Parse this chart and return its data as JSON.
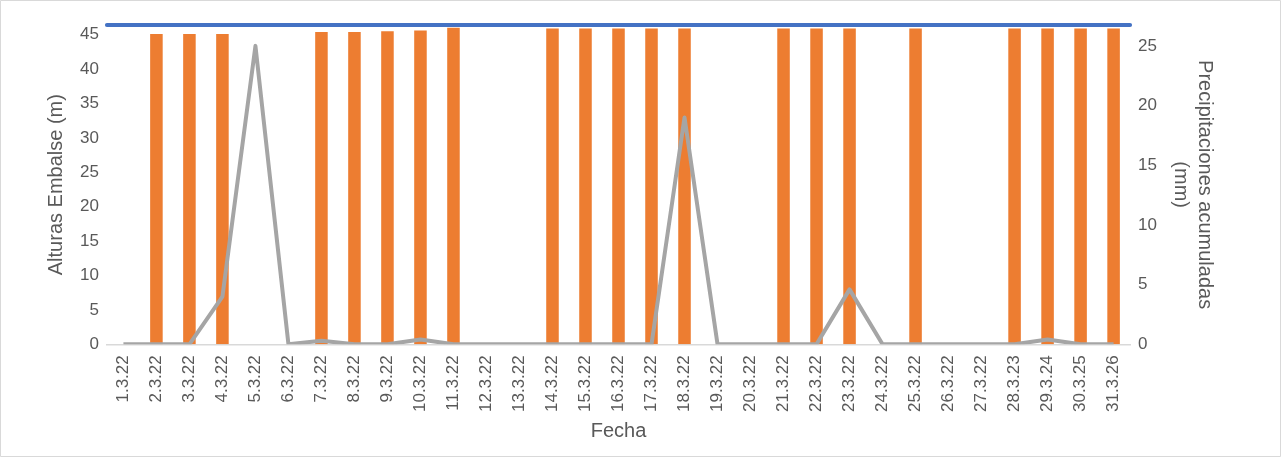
{
  "chart_data": {
    "type": "bar",
    "xlabel": "Fecha",
    "ylabel": "Alturas Embalse (m)",
    "y2label": "Precipitaciones acumuladas (mm)",
    "categories": [
      "1.3.22",
      "2.3.22",
      "3.3.22",
      "4.3.22",
      "5.3.22",
      "6.3.22",
      "7.3.22",
      "8.3.22",
      "9.3.22",
      "10.3.22",
      "11.3.22",
      "12.3.22",
      "13.3.22",
      "14.3.22",
      "15.3.22",
      "16.3.22",
      "17.3.22",
      "18.3.22",
      "19.3.22",
      "20.3.22",
      "21.3.22",
      "22.3.22",
      "23.3.22",
      "24.3.22",
      "25.3.22",
      "26.3.22",
      "27.3.22",
      "28.3.23",
      "29.3.24",
      "30.3.25",
      "31.3.26"
    ],
    "series": [
      {
        "color": "#ed7d31",
        "values": [
          null,
          45.1,
          45.1,
          45.1,
          null,
          null,
          45.4,
          45.4,
          45.5,
          45.6,
          46.0,
          null,
          null,
          45.9,
          45.9,
          45.9,
          45.9,
          45.9,
          null,
          null,
          45.9,
          45.9,
          45.9,
          null,
          45.9,
          null,
          null,
          45.9,
          45.9,
          45.9,
          45.9
        ]
      },
      {
        "type": "line",
        "axis": "y2",
        "color": "#a5a5a5",
        "values": [
          0,
          0,
          0,
          4.0,
          25,
          0,
          0.3,
          0,
          0,
          0.4,
          0,
          0,
          0,
          0,
          0,
          0,
          0,
          19.0,
          0,
          0,
          0,
          0,
          4.6,
          0,
          0,
          0,
          0,
          0,
          0.4,
          0,
          0
        ]
      }
    ],
    "ylim": [
      0,
      46.4
    ],
    "yticks": [
      0,
      5,
      10,
      15,
      20,
      25,
      30,
      35,
      40,
      45
    ],
    "y2lim": [
      0,
      26.75
    ],
    "y2ticks": [
      0,
      5,
      10,
      15,
      20,
      25
    ],
    "ref_lines": [
      {
        "axis": "y",
        "value": 46.4,
        "color": "#4472c4"
      }
    ],
    "grid": false,
    "legend": false,
    "marker": "none",
    "line_style": "solid"
  }
}
